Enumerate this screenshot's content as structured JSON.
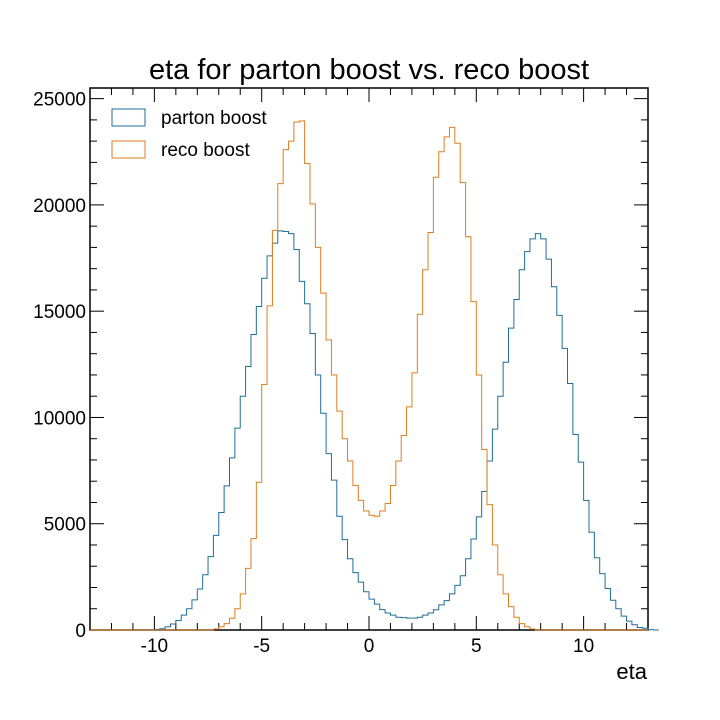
{
  "chart_data": {
    "type": "histogram",
    "title": "eta for parton boost vs. reco boost",
    "xlabel": "eta",
    "ylabel": "",
    "xlim": [
      -13,
      13
    ],
    "ylim": [
      0,
      25500
    ],
    "x_ticks": [
      -10,
      -5,
      0,
      5,
      10
    ],
    "x_tick_labels": [
      "-10",
      "-5",
      "0",
      "5",
      "10"
    ],
    "y_ticks": [
      0,
      5000,
      10000,
      15000,
      20000,
      25000
    ],
    "y_tick_labels": [
      "0",
      "5000",
      "10000",
      "15000",
      "20000",
      "25000"
    ],
    "bin_start": -13,
    "bin_width": 0.25,
    "legend_position": "top-left",
    "series": [
      {
        "name": "parton boost",
        "color": "#1f6e9a",
        "values": [
          0,
          0,
          0,
          0,
          0,
          0,
          0,
          0,
          0,
          0,
          0,
          0,
          30,
          60,
          150,
          280,
          450,
          700,
          1000,
          1420,
          1930,
          2600,
          3450,
          4450,
          5530,
          6780,
          8100,
          9500,
          11000,
          12400,
          13900,
          15220,
          16550,
          17600,
          18200,
          18780,
          18750,
          18650,
          17900,
          16400,
          15350,
          13950,
          12000,
          10200,
          8300,
          7050,
          5350,
          4250,
          3350,
          2700,
          2250,
          1800,
          1450,
          1220,
          960,
          800,
          700,
          600,
          580,
          560,
          560,
          600,
          700,
          800,
          950,
          1180,
          1380,
          1700,
          2100,
          2550,
          3350,
          4280,
          5320,
          6520,
          7950,
          9450,
          11000,
          12600,
          14200,
          15550,
          16950,
          17800,
          18400,
          18650,
          18400,
          17450,
          16150,
          14800,
          13250,
          11600,
          9200,
          7900,
          6100,
          4600,
          3400,
          2650,
          1950,
          1400,
          1000,
          650,
          420,
          250,
          120,
          80,
          20,
          0
        ]
      },
      {
        "name": "reco boost",
        "color": "#e07d1e",
        "values": [
          0,
          0,
          0,
          0,
          0,
          0,
          0,
          0,
          0,
          0,
          0,
          0,
          0,
          0,
          0,
          0,
          0,
          0,
          0,
          0,
          0,
          0,
          0,
          50,
          150,
          300,
          550,
          1000,
          1700,
          2900,
          4300,
          6950,
          11550,
          15250,
          18800,
          21000,
          22600,
          23000,
          23900,
          23950,
          21950,
          20050,
          18000,
          15850,
          13650,
          12000,
          10300,
          9000,
          7950,
          6800,
          6100,
          5600,
          5400,
          5350,
          5600,
          5950,
          6800,
          7950,
          9150,
          10500,
          12100,
          14850,
          16950,
          18700,
          21300,
          22500,
          23200,
          23650,
          22900,
          21050,
          18500,
          15450,
          12000,
          8500,
          5900,
          4000,
          2600,
          1700,
          1100,
          600,
          300,
          150,
          50,
          0,
          0,
          0,
          0,
          0,
          0,
          0,
          0,
          0,
          0,
          0,
          0,
          0,
          0,
          0,
          0,
          0,
          0,
          0,
          0,
          0
        ]
      }
    ]
  }
}
